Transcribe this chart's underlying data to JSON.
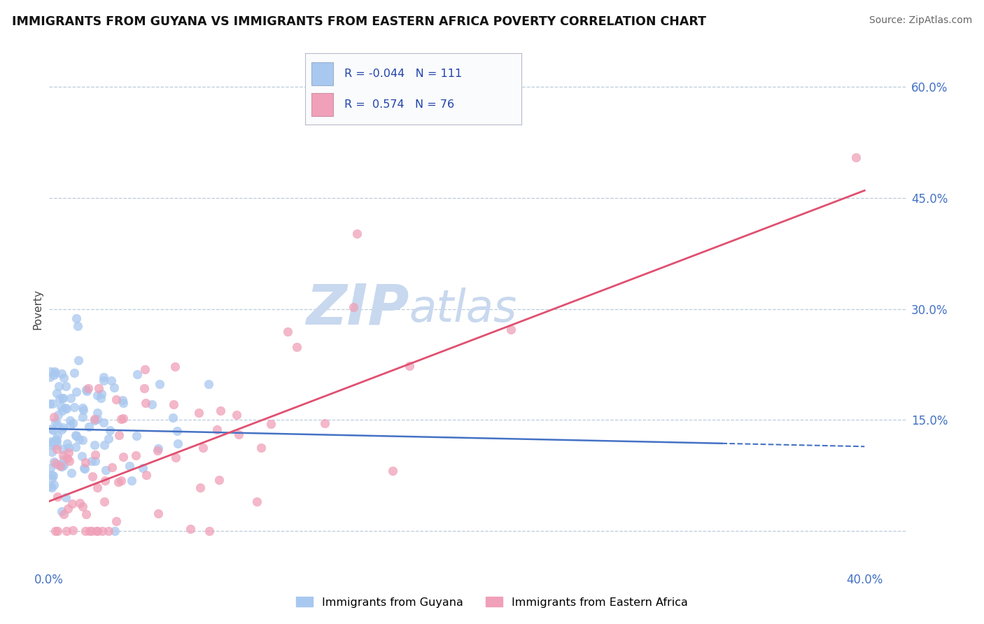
{
  "title": "IMMIGRANTS FROM GUYANA VS IMMIGRANTS FROM EASTERN AFRICA POVERTY CORRELATION CHART",
  "source": "Source: ZipAtlas.com",
  "xlim": [
    0.0,
    0.42
  ],
  "ylim": [
    -0.05,
    0.65
  ],
  "yticks": [
    0.0,
    0.15,
    0.3,
    0.45,
    0.6
  ],
  "ytick_labels": [
    "",
    "15.0%",
    "30.0%",
    "45.0%",
    "60.0%"
  ],
  "xtick_left_label": "0.0%",
  "xtick_right_label": "40.0%",
  "color_blue": "#A8C8F0",
  "color_pink": "#F0A0B8",
  "color_blue_line": "#4472C4",
  "color_pink_line": "#E05070",
  "color_tick": "#4472C4",
  "color_grid": "#BBCCDD",
  "watermark_color": "#C8D8EE",
  "background_color": "#FFFFFF",
  "legend_r1": "-0.044",
  "legend_n1": "111",
  "legend_r2": "0.574",
  "legend_n2": "76",
  "guyana_intercept": 0.138,
  "guyana_slope": -0.06,
  "eastern_intercept": 0.04,
  "eastern_slope": 1.05
}
